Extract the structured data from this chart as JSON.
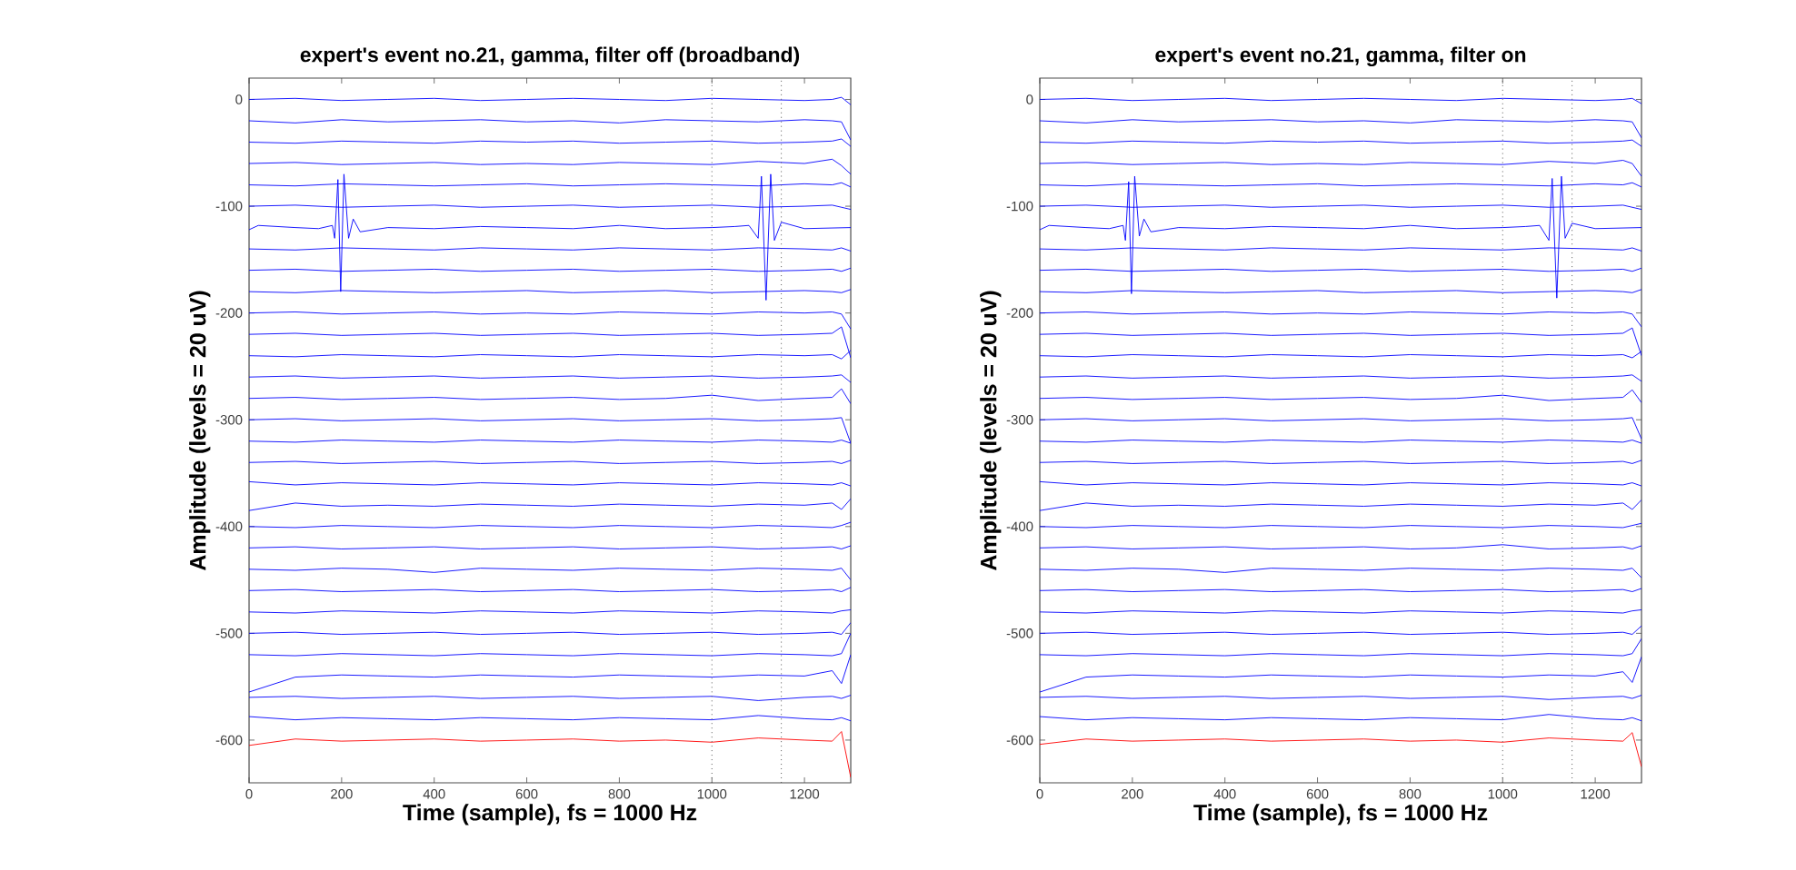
{
  "chart_data": [
    {
      "type": "line",
      "title": "expert's event no.21, gamma, filter off (broadband)",
      "xlabel": "Time (sample), fs = 1000 Hz",
      "ylabel": "Amplitude (levels = 20 uV)",
      "xlim": [
        0,
        1300
      ],
      "ylim": [
        -640,
        20
      ],
      "xticks": [
        0,
        200,
        400,
        600,
        800,
        1000,
        1200
      ],
      "yticks": [
        -600,
        -500,
        -400,
        -300,
        -200,
        -100,
        0
      ],
      "marker": "none",
      "line_style": "solid",
      "ref_lines": [
        {
          "axis": "x",
          "value": 1000,
          "line_style": "dotted",
          "color": "#555555"
        },
        {
          "axis": "x",
          "value": 1150,
          "line_style": "dotted",
          "color": "#555555"
        }
      ],
      "x": [
        0,
        100,
        200,
        300,
        400,
        500,
        600,
        700,
        800,
        900,
        1000,
        1100,
        1200,
        1260,
        1280,
        1300
      ],
      "series": [
        {
          "color": "#0000ff",
          "values": [
            0,
            1,
            -1,
            0,
            1,
            -1,
            0,
            1,
            0,
            -1,
            1,
            0,
            -1,
            0,
            2,
            -5
          ]
        },
        {
          "color": "#0000ff",
          "values": [
            -20,
            -22,
            -19,
            -21,
            -20,
            -19,
            -21,
            -20,
            -22,
            -19,
            -20,
            -21,
            -19,
            -20,
            -21,
            -38
          ]
        },
        {
          "color": "#0000ff",
          "values": [
            -40,
            -41,
            -39,
            -40,
            -41,
            -39,
            -40,
            -39,
            -41,
            -40,
            -39,
            -41,
            -40,
            -39,
            -37,
            -44
          ]
        },
        {
          "color": "#0000ff",
          "values": [
            -60,
            -59,
            -61,
            -60,
            -59,
            -61,
            -60,
            -61,
            -59,
            -60,
            -61,
            -58,
            -60,
            -56,
            -62,
            -70
          ]
        },
        {
          "color": "#0000ff",
          "values": [
            -80,
            -81,
            -79,
            -80,
            -81,
            -80,
            -79,
            -81,
            -80,
            -79,
            -80,
            -81,
            -79,
            -80,
            -78,
            -82
          ]
        },
        {
          "color": "#0000ff",
          "values": [
            -100,
            -99,
            -101,
            -100,
            -99,
            -101,
            -100,
            -99,
            -101,
            -100,
            -99,
            -101,
            -100,
            -99,
            -101,
            -103
          ]
        },
        {
          "color": "#0000ff",
          "x": [
            0,
            20,
            100,
            150,
            180,
            185,
            192,
            198,
            205,
            215,
            225,
            240,
            300,
            400,
            500,
            600,
            700,
            800,
            900,
            1000,
            1050,
            1080,
            1100,
            1107,
            1117,
            1127,
            1135,
            1150,
            1200,
            1300
          ],
          "values": [
            -122,
            -118,
            -120,
            -121,
            -118,
            -130,
            -75,
            -180,
            -70,
            -130,
            -112,
            -124,
            -120,
            -121,
            -119,
            -120,
            -121,
            -118,
            -121,
            -120,
            -119,
            -118,
            -130,
            -72,
            -188,
            -70,
            -132,
            -115,
            -121,
            -120
          ]
        },
        {
          "color": "#0000ff",
          "values": [
            -140,
            -141,
            -139,
            -140,
            -141,
            -139,
            -140,
            -141,
            -139,
            -140,
            -141,
            -139,
            -140,
            -141,
            -139,
            -142
          ]
        },
        {
          "color": "#0000ff",
          "values": [
            -160,
            -159,
            -161,
            -160,
            -159,
            -161,
            -160,
            -159,
            -161,
            -160,
            -159,
            -161,
            -160,
            -159,
            -161,
            -158
          ]
        },
        {
          "color": "#0000ff",
          "values": [
            -180,
            -181,
            -179,
            -180,
            -181,
            -180,
            -179,
            -181,
            -180,
            -179,
            -181,
            -180,
            -179,
            -180,
            -181,
            -178
          ]
        },
        {
          "color": "#0000ff",
          "values": [
            -200,
            -199,
            -201,
            -200,
            -199,
            -201,
            -200,
            -201,
            -199,
            -200,
            -201,
            -199,
            -200,
            -199,
            -201,
            -215
          ]
        },
        {
          "color": "#0000ff",
          "values": [
            -220,
            -219,
            -221,
            -220,
            -219,
            -221,
            -220,
            -219,
            -221,
            -220,
            -219,
            -221,
            -220,
            -219,
            -213,
            -242
          ]
        },
        {
          "color": "#0000ff",
          "values": [
            -240,
            -241,
            -239,
            -240,
            -241,
            -239,
            -240,
            -241,
            -239,
            -240,
            -241,
            -239,
            -240,
            -239,
            -243,
            -235
          ]
        },
        {
          "color": "#0000ff",
          "values": [
            -260,
            -259,
            -261,
            -260,
            -259,
            -261,
            -260,
            -259,
            -261,
            -260,
            -259,
            -261,
            -260,
            -259,
            -258,
            -265
          ]
        },
        {
          "color": "#0000ff",
          "values": [
            -280,
            -279,
            -281,
            -280,
            -279,
            -281,
            -280,
            -279,
            -281,
            -280,
            -277,
            -282,
            -280,
            -279,
            -271,
            -285
          ]
        },
        {
          "color": "#0000ff",
          "values": [
            -300,
            -299,
            -301,
            -300,
            -299,
            -301,
            -300,
            -299,
            -301,
            -300,
            -299,
            -301,
            -300,
            -299,
            -298,
            -322
          ]
        },
        {
          "color": "#0000ff",
          "values": [
            -320,
            -321,
            -319,
            -320,
            -321,
            -319,
            -320,
            -321,
            -319,
            -320,
            -321,
            -319,
            -320,
            -321,
            -319,
            -322
          ]
        },
        {
          "color": "#0000ff",
          "values": [
            -340,
            -339,
            -341,
            -340,
            -339,
            -341,
            -340,
            -339,
            -341,
            -340,
            -339,
            -341,
            -340,
            -339,
            -341,
            -338
          ]
        },
        {
          "color": "#0000ff",
          "values": [
            -358,
            -361,
            -359,
            -360,
            -361,
            -359,
            -360,
            -361,
            -359,
            -360,
            -361,
            -359,
            -360,
            -361,
            -359,
            -362
          ]
        },
        {
          "color": "#0000ff",
          "values": [
            -385,
            -378,
            -381,
            -380,
            -381,
            -379,
            -380,
            -381,
            -379,
            -380,
            -381,
            -379,
            -380,
            -378,
            -384,
            -374
          ]
        },
        {
          "color": "#0000ff",
          "values": [
            -400,
            -401,
            -399,
            -400,
            -401,
            -399,
            -400,
            -401,
            -399,
            -400,
            -401,
            -399,
            -400,
            -401,
            -399,
            -396
          ]
        },
        {
          "color": "#0000ff",
          "values": [
            -420,
            -419,
            -421,
            -420,
            -419,
            -421,
            -420,
            -419,
            -421,
            -420,
            -419,
            -421,
            -420,
            -419,
            -421,
            -418
          ]
        },
        {
          "color": "#0000ff",
          "values": [
            -440,
            -441,
            -439,
            -440,
            -443,
            -439,
            -440,
            -441,
            -439,
            -440,
            -441,
            -439,
            -440,
            -441,
            -439,
            -450
          ]
        },
        {
          "color": "#0000ff",
          "values": [
            -460,
            -459,
            -461,
            -460,
            -459,
            -461,
            -460,
            -459,
            -461,
            -460,
            -459,
            -461,
            -460,
            -459,
            -461,
            -457
          ]
        },
        {
          "color": "#0000ff",
          "values": [
            -480,
            -481,
            -479,
            -480,
            -481,
            -479,
            -480,
            -481,
            -479,
            -480,
            -481,
            -479,
            -480,
            -481,
            -479,
            -478
          ]
        },
        {
          "color": "#0000ff",
          "values": [
            -500,
            -499,
            -501,
            -500,
            -499,
            -501,
            -500,
            -499,
            -501,
            -500,
            -499,
            -501,
            -500,
            -499,
            -501,
            -490
          ]
        },
        {
          "color": "#0000ff",
          "values": [
            -520,
            -521,
            -519,
            -520,
            -521,
            -519,
            -520,
            -521,
            -519,
            -520,
            -521,
            -519,
            -520,
            -521,
            -519,
            -500
          ]
        },
        {
          "color": "#0000ff",
          "values": [
            -555,
            -541,
            -539,
            -540,
            -541,
            -539,
            -540,
            -541,
            -539,
            -540,
            -541,
            -539,
            -540,
            -535,
            -547,
            -520
          ]
        },
        {
          "color": "#0000ff",
          "values": [
            -560,
            -559,
            -561,
            -560,
            -559,
            -561,
            -560,
            -559,
            -561,
            -560,
            -559,
            -563,
            -560,
            -559,
            -561,
            -558
          ]
        },
        {
          "color": "#0000ff",
          "values": [
            -578,
            -581,
            -579,
            -580,
            -581,
            -579,
            -580,
            -581,
            -579,
            -580,
            -581,
            -577,
            -580,
            -581,
            -579,
            -582
          ]
        },
        {
          "color": "#ff0000",
          "values": [
            -605,
            -599,
            -601,
            -600,
            -599,
            -601,
            -600,
            -599,
            -601,
            -600,
            -602,
            -598,
            -600,
            -601,
            -592,
            -635
          ]
        }
      ]
    },
    {
      "type": "line",
      "title": "expert's event no.21, gamma, filter on",
      "xlabel": "Time (sample), fs = 1000 Hz",
      "ylabel": "Amplitude (levels = 20 uV)",
      "xlim": [
        0,
        1300
      ],
      "ylim": [
        -640,
        20
      ],
      "xticks": [
        0,
        200,
        400,
        600,
        800,
        1000,
        1200
      ],
      "yticks": [
        -600,
        -500,
        -400,
        -300,
        -200,
        -100,
        0
      ],
      "marker": "none",
      "line_style": "solid",
      "ref_lines": [
        {
          "axis": "x",
          "value": 1000,
          "line_style": "dotted",
          "color": "#555555"
        },
        {
          "axis": "x",
          "value": 1150,
          "line_style": "dotted",
          "color": "#555555"
        }
      ],
      "x": [
        0,
        100,
        200,
        300,
        400,
        500,
        600,
        700,
        800,
        900,
        1000,
        1100,
        1200,
        1260,
        1280,
        1300
      ],
      "series": [
        {
          "color": "#0000ff",
          "values": [
            0,
            1,
            -1,
            0,
            1,
            -1,
            0,
            1,
            0,
            -1,
            1,
            0,
            -1,
            0,
            1,
            -4
          ]
        },
        {
          "color": "#0000ff",
          "values": [
            -20,
            -22,
            -19,
            -21,
            -20,
            -19,
            -21,
            -20,
            -22,
            -19,
            -20,
            -21,
            -19,
            -20,
            -21,
            -36
          ]
        },
        {
          "color": "#0000ff",
          "values": [
            -40,
            -41,
            -39,
            -40,
            -41,
            -39,
            -40,
            -39,
            -41,
            -40,
            -39,
            -41,
            -40,
            -39,
            -38,
            -44
          ]
        },
        {
          "color": "#0000ff",
          "values": [
            -60,
            -59,
            -61,
            -60,
            -59,
            -61,
            -60,
            -61,
            -59,
            -60,
            -61,
            -58,
            -60,
            -57,
            -60,
            -72
          ]
        },
        {
          "color": "#0000ff",
          "values": [
            -80,
            -81,
            -79,
            -80,
            -81,
            -80,
            -79,
            -81,
            -80,
            -79,
            -80,
            -81,
            -79,
            -80,
            -78,
            -82
          ]
        },
        {
          "color": "#0000ff",
          "values": [
            -100,
            -99,
            -101,
            -100,
            -99,
            -101,
            -100,
            -99,
            -101,
            -100,
            -99,
            -101,
            -100,
            -99,
            -101,
            -103
          ]
        },
        {
          "color": "#0000ff",
          "x": [
            0,
            20,
            100,
            150,
            180,
            185,
            192,
            198,
            205,
            215,
            225,
            240,
            300,
            400,
            500,
            600,
            700,
            800,
            900,
            1000,
            1050,
            1080,
            1100,
            1107,
            1117,
            1127,
            1135,
            1150,
            1200,
            1300
          ],
          "values": [
            -122,
            -118,
            -120,
            -121,
            -118,
            -132,
            -77,
            -182,
            -72,
            -128,
            -112,
            -124,
            -120,
            -121,
            -119,
            -120,
            -121,
            -118,
            -121,
            -120,
            -119,
            -118,
            -132,
            -74,
            -186,
            -72,
            -130,
            -116,
            -121,
            -120
          ]
        },
        {
          "color": "#0000ff",
          "values": [
            -140,
            -141,
            -139,
            -140,
            -141,
            -139,
            -140,
            -141,
            -139,
            -140,
            -141,
            -139,
            -140,
            -141,
            -139,
            -142
          ]
        },
        {
          "color": "#0000ff",
          "values": [
            -160,
            -159,
            -161,
            -160,
            -159,
            -161,
            -160,
            -159,
            -161,
            -160,
            -159,
            -161,
            -160,
            -159,
            -161,
            -158
          ]
        },
        {
          "color": "#0000ff",
          "values": [
            -180,
            -181,
            -179,
            -180,
            -181,
            -180,
            -179,
            -181,
            -180,
            -179,
            -181,
            -180,
            -179,
            -180,
            -181,
            -178
          ]
        },
        {
          "color": "#0000ff",
          "values": [
            -200,
            -199,
            -201,
            -200,
            -199,
            -201,
            -200,
            -201,
            -199,
            -200,
            -201,
            -199,
            -200,
            -199,
            -201,
            -213
          ]
        },
        {
          "color": "#0000ff",
          "values": [
            -220,
            -219,
            -221,
            -220,
            -219,
            -221,
            -220,
            -219,
            -221,
            -220,
            -219,
            -221,
            -220,
            -219,
            -214,
            -240
          ]
        },
        {
          "color": "#0000ff",
          "values": [
            -240,
            -241,
            -239,
            -240,
            -241,
            -239,
            -240,
            -241,
            -239,
            -240,
            -241,
            -239,
            -240,
            -239,
            -242,
            -236
          ]
        },
        {
          "color": "#0000ff",
          "values": [
            -260,
            -259,
            -261,
            -260,
            -259,
            -261,
            -260,
            -259,
            -261,
            -260,
            -259,
            -261,
            -260,
            -259,
            -258,
            -264
          ]
        },
        {
          "color": "#0000ff",
          "values": [
            -280,
            -279,
            -281,
            -280,
            -279,
            -281,
            -280,
            -279,
            -281,
            -280,
            -277,
            -282,
            -280,
            -279,
            -272,
            -284
          ]
        },
        {
          "color": "#0000ff",
          "values": [
            -300,
            -299,
            -301,
            -300,
            -299,
            -301,
            -300,
            -299,
            -301,
            -300,
            -299,
            -301,
            -300,
            -299,
            -298,
            -318
          ]
        },
        {
          "color": "#0000ff",
          "values": [
            -320,
            -321,
            -319,
            -320,
            -321,
            -319,
            -320,
            -321,
            -319,
            -320,
            -321,
            -319,
            -320,
            -321,
            -319,
            -322
          ]
        },
        {
          "color": "#0000ff",
          "values": [
            -340,
            -339,
            -341,
            -340,
            -339,
            -341,
            -340,
            -339,
            -341,
            -340,
            -339,
            -341,
            -340,
            -339,
            -341,
            -338
          ]
        },
        {
          "color": "#0000ff",
          "values": [
            -358,
            -361,
            -359,
            -360,
            -361,
            -359,
            -360,
            -361,
            -359,
            -360,
            -361,
            -359,
            -360,
            -361,
            -359,
            -362
          ]
        },
        {
          "color": "#0000ff",
          "values": [
            -385,
            -378,
            -381,
            -380,
            -381,
            -379,
            -380,
            -381,
            -379,
            -380,
            -381,
            -379,
            -380,
            -378,
            -384,
            -375
          ]
        },
        {
          "color": "#0000ff",
          "values": [
            -400,
            -401,
            -399,
            -400,
            -401,
            -399,
            -400,
            -401,
            -399,
            -400,
            -401,
            -399,
            -400,
            -401,
            -399,
            -397
          ]
        },
        {
          "color": "#0000ff",
          "values": [
            -420,
            -419,
            -421,
            -420,
            -419,
            -421,
            -420,
            -419,
            -421,
            -420,
            -417,
            -421,
            -420,
            -419,
            -421,
            -418
          ]
        },
        {
          "color": "#0000ff",
          "values": [
            -440,
            -441,
            -439,
            -440,
            -443,
            -439,
            -440,
            -441,
            -439,
            -440,
            -441,
            -439,
            -440,
            -441,
            -439,
            -448
          ]
        },
        {
          "color": "#0000ff",
          "values": [
            -460,
            -459,
            -461,
            -460,
            -459,
            -461,
            -460,
            -459,
            -461,
            -460,
            -459,
            -461,
            -460,
            -459,
            -461,
            -458
          ]
        },
        {
          "color": "#0000ff",
          "values": [
            -480,
            -481,
            -479,
            -480,
            -481,
            -479,
            -480,
            -481,
            -479,
            -480,
            -481,
            -479,
            -480,
            -481,
            -479,
            -478
          ]
        },
        {
          "color": "#0000ff",
          "values": [
            -500,
            -499,
            -501,
            -500,
            -499,
            -501,
            -500,
            -499,
            -501,
            -500,
            -499,
            -501,
            -500,
            -499,
            -501,
            -493
          ]
        },
        {
          "color": "#0000ff",
          "values": [
            -520,
            -521,
            -519,
            -520,
            -521,
            -519,
            -520,
            -521,
            -519,
            -520,
            -521,
            -519,
            -520,
            -521,
            -519,
            -505
          ]
        },
        {
          "color": "#0000ff",
          "values": [
            -555,
            -541,
            -539,
            -540,
            -541,
            -539,
            -540,
            -541,
            -539,
            -540,
            -541,
            -539,
            -540,
            -536,
            -546,
            -522
          ]
        },
        {
          "color": "#0000ff",
          "values": [
            -560,
            -559,
            -561,
            -560,
            -559,
            -561,
            -560,
            -559,
            -561,
            -560,
            -559,
            -562,
            -560,
            -559,
            -561,
            -558
          ]
        },
        {
          "color": "#0000ff",
          "values": [
            -578,
            -581,
            -579,
            -580,
            -581,
            -579,
            -580,
            -581,
            -579,
            -580,
            -581,
            -576,
            -580,
            -581,
            -579,
            -582
          ]
        },
        {
          "color": "#ff0000",
          "values": [
            -604,
            -599,
            -601,
            -600,
            -599,
            -601,
            -600,
            -599,
            -601,
            -600,
            -602,
            -598,
            -600,
            -601,
            -593,
            -625
          ]
        }
      ]
    }
  ]
}
